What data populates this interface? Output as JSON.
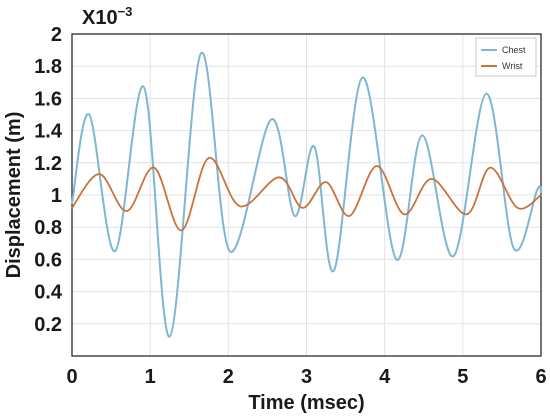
{
  "chart_data": {
    "type": "line",
    "title": "",
    "xlabel": "Time (msec)",
    "ylabel": "Displacement (m)",
    "y_multiplier": "X10",
    "y_multiplier_exponent": "−3",
    "xlim": [
      0,
      6
    ],
    "ylim": [
      0,
      2
    ],
    "x_ticks": [
      {
        "value": 0,
        "label": "0"
      },
      {
        "value": 1,
        "label": "1"
      },
      {
        "value": 2,
        "label": "2"
      },
      {
        "value": 3,
        "label": "3"
      },
      {
        "value": 4,
        "label": "4"
      },
      {
        "value": 5,
        "label": "5"
      },
      {
        "value": 6,
        "label": "6"
      }
    ],
    "y_ticks": [
      {
        "value": 0.2,
        "label": "0.2"
      },
      {
        "value": 0.4,
        "label": "0.4"
      },
      {
        "value": 0.6,
        "label": "0.6"
      },
      {
        "value": 0.8,
        "label": "0.8"
      },
      {
        "value": 1.0,
        "label": "1"
      },
      {
        "value": 1.2,
        "label": "1.2"
      },
      {
        "value": 1.4,
        "label": "1.4"
      },
      {
        "value": 1.6,
        "label": "1.6"
      },
      {
        "value": 1.8,
        "label": "1.8"
      },
      {
        "value": 2.0,
        "label": "2"
      }
    ],
    "grid": true,
    "legend_position": "top-right",
    "series": [
      {
        "name": "Chest",
        "color": "#7eb6d3",
        "x": [
          0,
          0.22,
          0.55,
          0.92,
          1.25,
          1.65,
          2.02,
          2.55,
          2.85,
          3.1,
          3.35,
          3.72,
          4.15,
          4.48,
          4.88,
          5.3,
          5.65,
          5.95,
          6.0
        ],
        "y": [
          0.95,
          1.5,
          0.65,
          1.67,
          0.12,
          1.88,
          0.65,
          1.47,
          0.87,
          1.3,
          0.53,
          1.73,
          0.6,
          1.37,
          0.62,
          1.63,
          0.67,
          1.03,
          1.02
        ]
      },
      {
        "name": "Wrist",
        "color": "#c9733a",
        "x": [
          0,
          0.35,
          0.7,
          1.05,
          1.4,
          1.75,
          2.15,
          2.65,
          2.95,
          3.25,
          3.55,
          3.9,
          4.25,
          4.6,
          5.05,
          5.35,
          5.7,
          6.0
        ],
        "y": [
          0.92,
          1.13,
          0.9,
          1.17,
          0.78,
          1.23,
          0.93,
          1.11,
          0.92,
          1.08,
          0.87,
          1.18,
          0.88,
          1.1,
          0.88,
          1.17,
          0.92,
          1.0
        ]
      }
    ]
  }
}
